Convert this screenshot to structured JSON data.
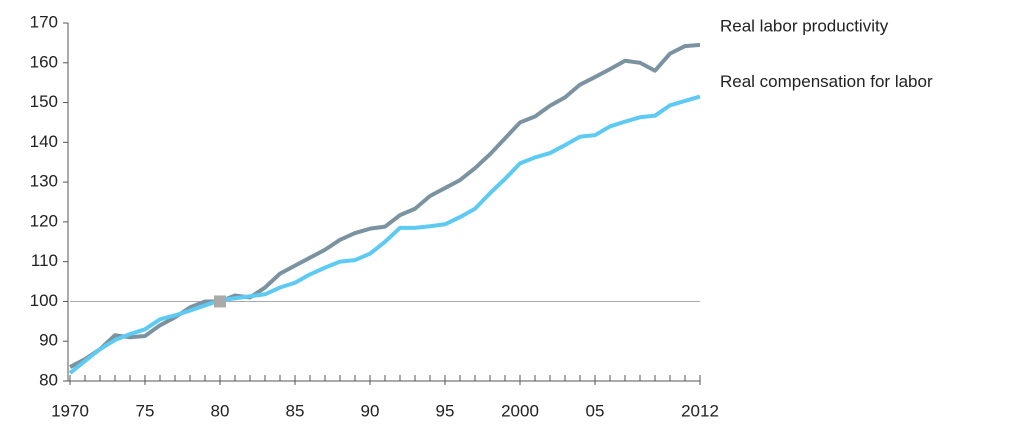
{
  "chart_data": {
    "type": "line",
    "x": [
      1970,
      1971,
      1972,
      1973,
      1974,
      1975,
      1976,
      1977,
      1978,
      1979,
      1980,
      1981,
      1982,
      1983,
      1984,
      1985,
      1986,
      1987,
      1988,
      1989,
      1990,
      1991,
      1992,
      1993,
      1994,
      1995,
      1996,
      1997,
      1998,
      1999,
      2000,
      2001,
      2002,
      2003,
      2004,
      2005,
      2006,
      2007,
      2008,
      2009,
      2010,
      2011,
      2012
    ],
    "series": [
      {
        "name": "Real labor productivity",
        "color": "#7b93a1",
        "values": [
          83.5,
          85.5,
          88,
          91.5,
          91,
          91.3,
          94,
          96,
          98.5,
          100,
          100,
          101.5,
          101,
          103.5,
          107,
          109,
          111,
          113,
          115.5,
          117.2,
          118.3,
          118.8,
          121.7,
          123.3,
          126.5,
          128.5,
          130.5,
          133.5,
          137,
          141,
          145,
          146.5,
          149.2,
          151.3,
          154.5,
          156.4,
          158.4,
          160.5,
          160,
          158,
          162.3,
          164.2,
          164.5
        ]
      },
      {
        "name": "Real compensation for labor",
        "color": "#5ccaf2",
        "values": [
          82,
          85,
          88,
          90.3,
          91.8,
          93,
          95.5,
          96.5,
          97.7,
          99,
          100.3,
          100.8,
          101.3,
          101.8,
          103.5,
          104.7,
          106.8,
          108.5,
          110,
          110.4,
          112,
          115,
          118.5,
          118.5,
          118.9,
          119.4,
          121.2,
          123.3,
          127.2,
          130.8,
          134.7,
          136.2,
          137.3,
          139.3,
          141.4,
          141.8,
          144,
          145.2,
          146.3,
          146.7,
          149.3,
          150.4,
          151.5
        ]
      }
    ],
    "xlim": [
      1970,
      2012
    ],
    "xticks": [
      1970,
      {
        "value": 1975,
        "label": "75"
      },
      {
        "value": 1980,
        "label": "80"
      },
      {
        "value": 1985,
        "label": "85"
      },
      {
        "value": 1990,
        "label": "90"
      },
      {
        "value": 1995,
        "label": "95"
      },
      2000,
      {
        "value": 2005,
        "label": "05"
      },
      2012
    ],
    "ylim": [
      80,
      170
    ],
    "yticks": [
      80,
      90,
      100,
      110,
      120,
      130,
      140,
      150,
      160,
      170
    ],
    "reference_line": 100,
    "marker": {
      "x": 1980,
      "y": 100,
      "color": "#aaaaaa"
    }
  }
}
